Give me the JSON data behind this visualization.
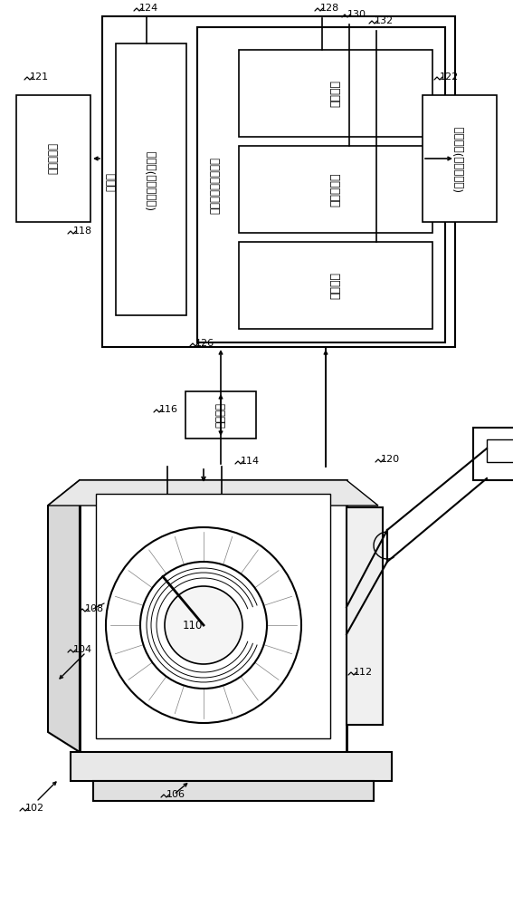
{
  "bg_color": "#ffffff",
  "lc": "#000000",
  "box_texts": {
    "display": "显示监视器",
    "console": "控制台",
    "processor": "(一个或多个)处理器",
    "medium": "计算机可读存储介质",
    "control_cmd": "控制指令",
    "spectrum_module": "谱结果模块",
    "training_module": "训练模块",
    "input": "(一个或多个)输入设备",
    "resampler": "重采样器"
  }
}
